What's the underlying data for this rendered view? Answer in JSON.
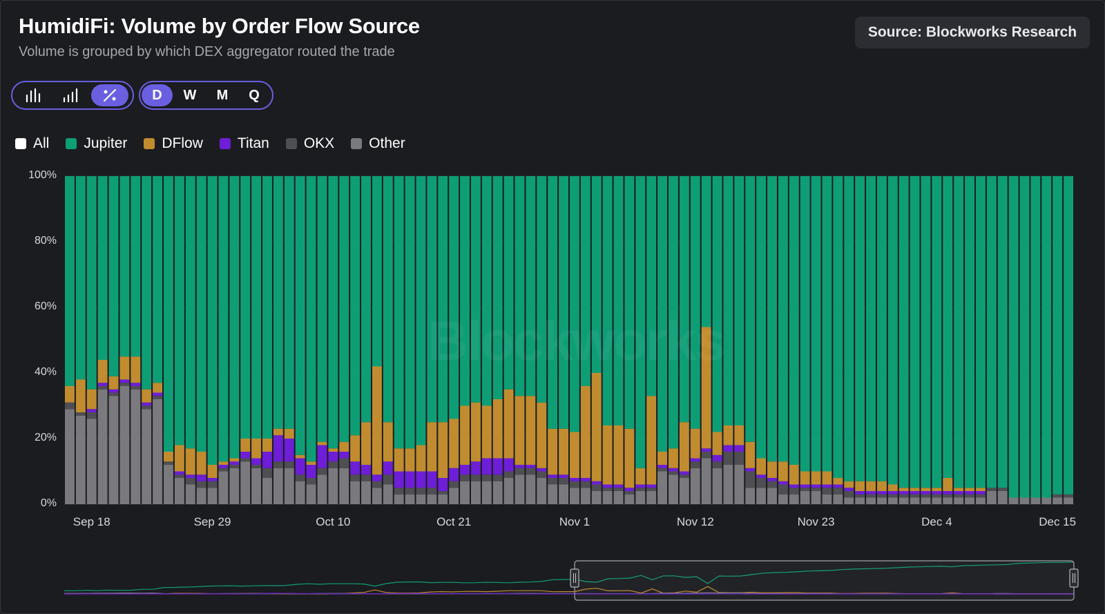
{
  "header": {
    "title": "HumidiFi: Volume by Order Flow Source",
    "subtitle": "Volume is grouped by which DEX aggregator routed the trade",
    "source": "Source: Blockworks Research"
  },
  "chart_type_toggle": {
    "options": [
      {
        "name": "stacked-bar-icon",
        "active": false
      },
      {
        "name": "grouped-bar-icon",
        "active": false
      },
      {
        "name": "percent-icon",
        "active": true
      }
    ]
  },
  "period_toggle": {
    "options": [
      {
        "label": "D",
        "active": true
      },
      {
        "label": "W",
        "active": false
      },
      {
        "label": "M",
        "active": false
      },
      {
        "label": "Q",
        "active": false
      }
    ]
  },
  "watermark": "Blockworks",
  "chart_data": {
    "type": "bar",
    "stacked": true,
    "normalized": true,
    "ylim": [
      0,
      100
    ],
    "y_ticks": [
      "0%",
      "20%",
      "40%",
      "60%",
      "80%",
      "100%"
    ],
    "x_tick_labels": [
      "Sep 18",
      "Sep 29",
      "Oct 10",
      "Oct 21",
      "Nov 1",
      "Nov 12",
      "Nov 23",
      "Dec 4",
      "Dec 15"
    ],
    "x_tick_indices": [
      2,
      13,
      24,
      35,
      46,
      57,
      68,
      79,
      90
    ],
    "legend": [
      {
        "label": "All",
        "color": "#ffffff"
      },
      {
        "label": "Jupiter",
        "color": "#0e9e76"
      },
      {
        "label": "DFlow",
        "color": "#c18c2f"
      },
      {
        "label": "Titan",
        "color": "#6d1ed6"
      },
      {
        "label": "OKX",
        "color": "#4f4f53"
      },
      {
        "label": "Other",
        "color": "#7a7a7e"
      }
    ],
    "dates": [
      "Sep 16",
      "Sep 17",
      "Sep 18",
      "Sep 19",
      "Sep 20",
      "Sep 21",
      "Sep 22",
      "Sep 23",
      "Sep 24",
      "Sep 25",
      "Sep 26",
      "Sep 27",
      "Sep 28",
      "Sep 29",
      "Sep 30",
      "Oct 1",
      "Oct 2",
      "Oct 3",
      "Oct 4",
      "Oct 5",
      "Oct 6",
      "Oct 7",
      "Oct 8",
      "Oct 9",
      "Oct 10",
      "Oct 11",
      "Oct 12",
      "Oct 13",
      "Oct 14",
      "Oct 15",
      "Oct 16",
      "Oct 17",
      "Oct 18",
      "Oct 19",
      "Oct 20",
      "Oct 21",
      "Oct 22",
      "Oct 23",
      "Oct 24",
      "Oct 25",
      "Oct 26",
      "Oct 27",
      "Oct 28",
      "Oct 29",
      "Oct 30",
      "Oct 31",
      "Nov 1",
      "Nov 2",
      "Nov 3",
      "Nov 4",
      "Nov 5",
      "Nov 6",
      "Nov 7",
      "Nov 8",
      "Nov 9",
      "Nov 10",
      "Nov 11",
      "Nov 12",
      "Nov 13",
      "Nov 14",
      "Nov 15",
      "Nov 16",
      "Nov 17",
      "Nov 18",
      "Nov 19",
      "Nov 20",
      "Nov 21",
      "Nov 22",
      "Nov 23",
      "Nov 24",
      "Nov 25",
      "Nov 26",
      "Nov 27",
      "Nov 28",
      "Nov 29",
      "Nov 30",
      "Dec 1",
      "Dec 2",
      "Dec 3",
      "Dec 4",
      "Dec 5",
      "Dec 6",
      "Dec 7",
      "Dec 8",
      "Dec 9",
      "Dec 10",
      "Dec 11",
      "Dec 12",
      "Dec 13",
      "Dec 14",
      "Dec 15",
      "Dec 16"
    ],
    "series": [
      {
        "name": "Other",
        "values": [
          29,
          27,
          26,
          35,
          33,
          36,
          35,
          29,
          32,
          12,
          8,
          6,
          5,
          5,
          10,
          11,
          13,
          11,
          8,
          11,
          11,
          7,
          6,
          9,
          11,
          11,
          7,
          7,
          5,
          6,
          3,
          3,
          3,
          3,
          3,
          5,
          7,
          7,
          7,
          7,
          8,
          9,
          9,
          8,
          6,
          6,
          5,
          5,
          4,
          4,
          4,
          3,
          4,
          4,
          10,
          9,
          8,
          11,
          14,
          11,
          12,
          12,
          5,
          5,
          5,
          3,
          3,
          4,
          4,
          3,
          3,
          2,
          2,
          2,
          2,
          2,
          2,
          2,
          2,
          2,
          2,
          2,
          2,
          2,
          4,
          4,
          2,
          2,
          2,
          2,
          2,
          2
        ]
      },
      {
        "name": "OKX",
        "values": [
          2,
          1,
          2,
          1,
          1,
          1,
          1,
          1,
          1,
          1,
          1,
          2,
          2,
          2,
          1,
          1,
          1,
          1,
          3,
          2,
          2,
          2,
          2,
          2,
          2,
          3,
          2,
          2,
          2,
          3,
          2,
          2,
          2,
          2,
          1,
          2,
          2,
          2,
          2,
          2,
          2,
          2,
          2,
          2,
          2,
          2,
          2,
          2,
          2,
          1,
          1,
          1,
          1,
          1,
          1,
          1,
          1,
          2,
          2,
          2,
          4,
          4,
          5,
          3,
          2,
          3,
          2,
          1,
          1,
          2,
          2,
          2,
          1,
          1,
          1,
          1,
          1,
          1,
          1,
          1,
          1,
          1,
          1,
          1,
          1,
          1,
          0,
          0,
          0,
          0,
          1,
          1
        ]
      },
      {
        "name": "Titan",
        "values": [
          0,
          0,
          1,
          1,
          1,
          1,
          1,
          1,
          1,
          0,
          1,
          1,
          2,
          1,
          1,
          1,
          2,
          2,
          5,
          8,
          7,
          5,
          4,
          7,
          3,
          2,
          4,
          3,
          2,
          4,
          5,
          5,
          5,
          5,
          4,
          4,
          3,
          4,
          5,
          5,
          4,
          1,
          1,
          1,
          1,
          1,
          1,
          1,
          1,
          1,
          1,
          1,
          1,
          1,
          1,
          1,
          1,
          1,
          1,
          2,
          2,
          2,
          1,
          1,
          1,
          1,
          1,
          1,
          1,
          1,
          1,
          1,
          1,
          1,
          1,
          1,
          1,
          1,
          1,
          1,
          1,
          1,
          1,
          1,
          0,
          0,
          0,
          0,
          0,
          0,
          0,
          0
        ]
      },
      {
        "name": "DFlow",
        "values": [
          5,
          10,
          6,
          7,
          4,
          7,
          8,
          4,
          3,
          3,
          8,
          8,
          7,
          4,
          1,
          1,
          4,
          6,
          4,
          2,
          3,
          1,
          1,
          1,
          1,
          3,
          8,
          13,
          33,
          12,
          7,
          7,
          8,
          15,
          17,
          15,
          18,
          18,
          16,
          18,
          21,
          21,
          21,
          20,
          14,
          14,
          14,
          28,
          33,
          18,
          18,
          18,
          5,
          27,
          4,
          6,
          15,
          9,
          37,
          7,
          6,
          6,
          8,
          5,
          5,
          6,
          6,
          4,
          4,
          4,
          2,
          2,
          3,
          3,
          3,
          2,
          1,
          1,
          1,
          1,
          4,
          1,
          1,
          1,
          0,
          0,
          0,
          0,
          0,
          0,
          0,
          0
        ]
      }
    ]
  },
  "navigator": {
    "window_from": "Nov 1",
    "window_to": "Dec 16"
  }
}
